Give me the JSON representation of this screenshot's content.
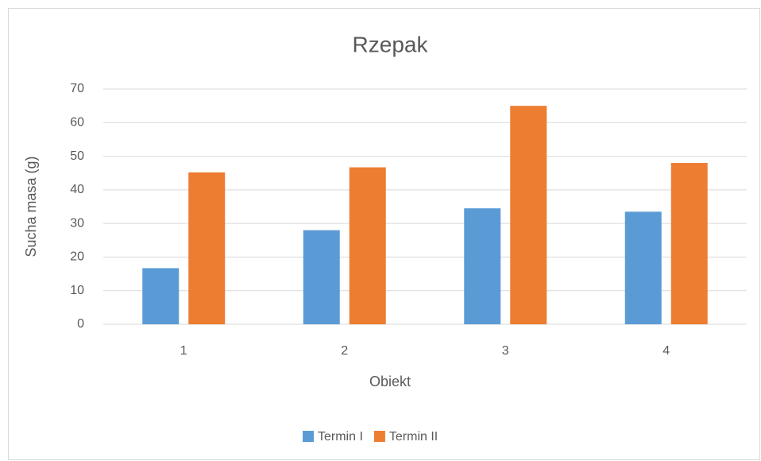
{
  "chart_data": {
    "type": "bar",
    "title": "Rzepak",
    "x_label": "Obiekt",
    "y_label": "Sucha masa (g)",
    "categories": [
      "1",
      "2",
      "3",
      "4"
    ],
    "series": [
      {
        "name": "Termin I",
        "color": "#5b9bd5",
        "values": [
          16.7,
          28,
          34.5,
          33.5
        ]
      },
      {
        "name": "Termin II",
        "color": "#ed7d31",
        "values": [
          45.2,
          46.7,
          65,
          48
        ]
      }
    ],
    "ylim": [
      0,
      70
    ],
    "yticks": [
      0,
      10,
      20,
      30,
      40,
      50,
      60,
      70
    ],
    "grid": true,
    "legend": "bottom"
  }
}
